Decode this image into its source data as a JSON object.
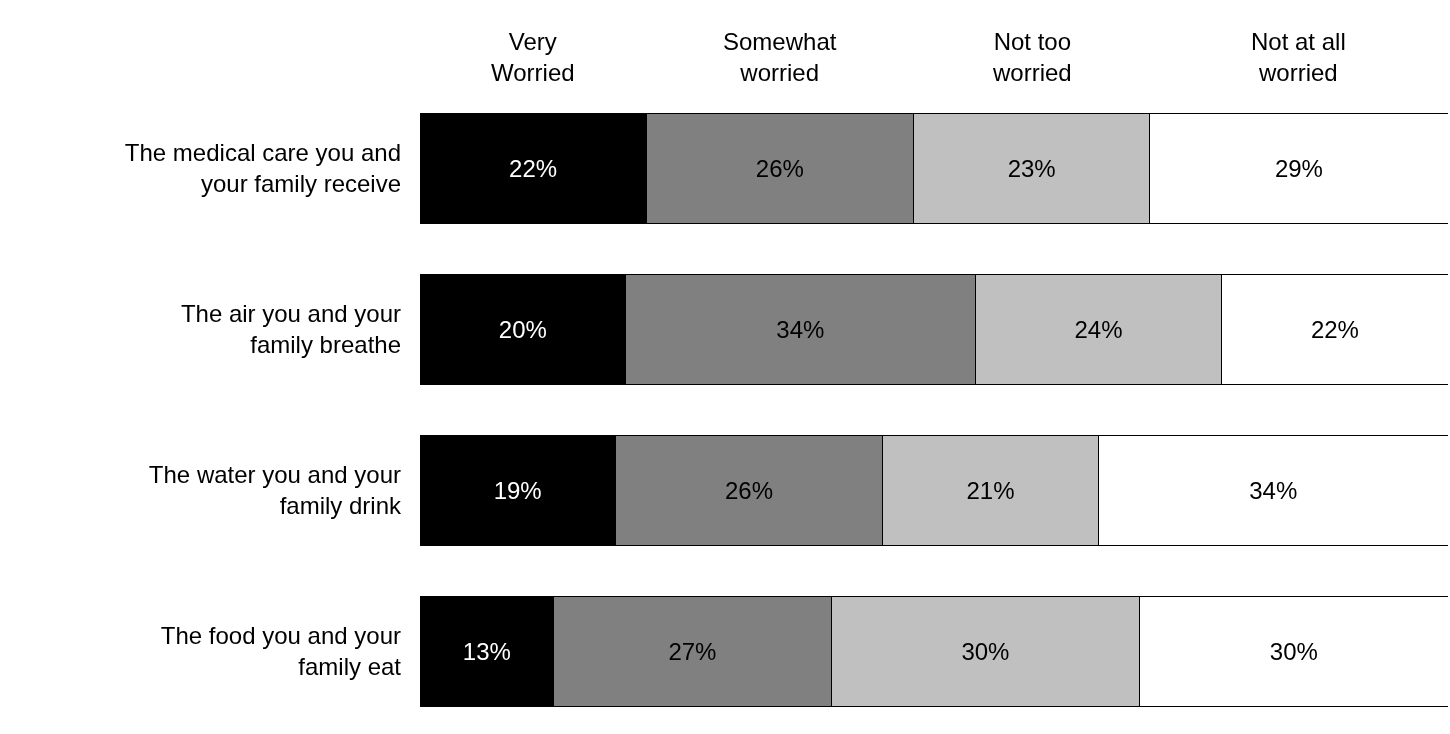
{
  "chart_data": {
    "type": "bar",
    "orientation": "horizontal",
    "stacked": true,
    "categories": [
      "The medical care you and your family receive",
      "The air you and your family breathe",
      "The water you and your family drink",
      "The food you and your family eat"
    ],
    "xlim": [
      0,
      100
    ],
    "tick_labels": "y",
    "series": [
      {
        "name": "Very Worried",
        "color": "#000000",
        "values": [
          22,
          20,
          19,
          13
        ],
        "value_labels": [
          "22%",
          "20%",
          "19%",
          "13%"
        ]
      },
      {
        "name": "Somewhat worried",
        "color": "#808080",
        "values": [
          26,
          34,
          26,
          27
        ],
        "value_labels": [
          "26%",
          "34%",
          "26%",
          "27%"
        ]
      },
      {
        "name": "Not too worried",
        "color": "#c0c0c0",
        "values": [
          23,
          24,
          21,
          30
        ],
        "value_labels": [
          "23%",
          "24%",
          "21%",
          "30%"
        ]
      },
      {
        "name": "Not at all worried",
        "color": "#ffffff",
        "values": [
          29,
          22,
          34,
          30
        ],
        "value_labels": [
          "29%",
          "22%",
          "34%",
          "30%"
        ]
      }
    ]
  }
}
